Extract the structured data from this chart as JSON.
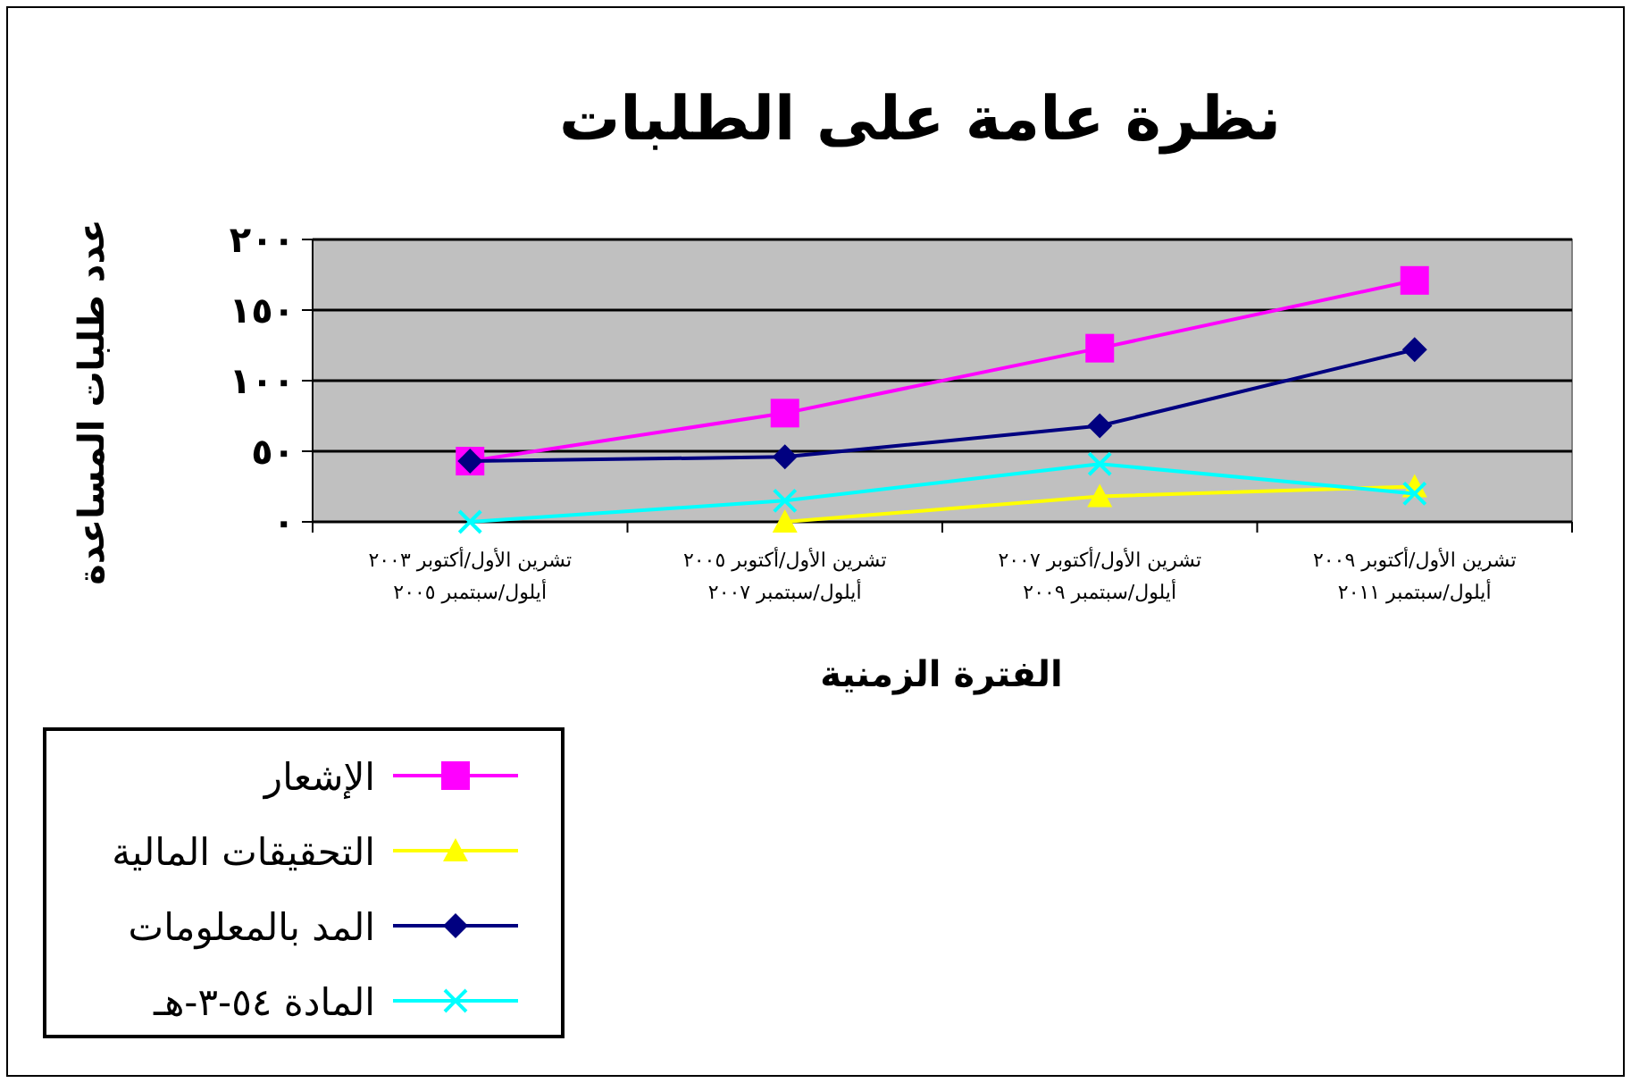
{
  "chart_data": {
    "type": "line",
    "title": "نظرة عامة على الطلبات",
    "xlabel": "الفترة الزمنية",
    "ylabel": "عدد طلبات المساعدة",
    "categories": [
      "تشرين الأول/أكتوبر ٢٠٠٣\nأيلول/سبتمبر ٢٠٠٥",
      "تشرين الأول/أكتوبر ٢٠٠٥\nأيلول/سبتمبر ٢٠٠٧",
      "تشرين الأول/أكتوبر ٢٠٠٧\nأيلول/سبتمبر ٢٠٠٩",
      "تشرين الأول/أكتوبر ٢٠٠٩\nأيلول/سبتمبر ٢٠١١"
    ],
    "series": [
      {
        "name": "الإشعار",
        "color": "#ff00ff",
        "marker": "square",
        "values": [
          43,
          77,
          123,
          171
        ]
      },
      {
        "name": "التحقيقات المالية",
        "color": "#ffff00",
        "marker": "triangle",
        "values": [
          null,
          0,
          18,
          25
        ]
      },
      {
        "name": "المد بالمعلومات",
        "color": "#000080",
        "marker": "diamond",
        "values": [
          43,
          46,
          68,
          122
        ]
      },
      {
        "name": "المادة ٥٤-٣-هـ",
        "color": "#00ffff",
        "marker": "cross",
        "values": [
          0,
          15,
          41,
          20
        ]
      }
    ],
    "ylim": [
      0,
      200
    ],
    "yticks": [
      {
        "value": 0,
        "label": "٠"
      },
      {
        "value": 50,
        "label": "٥٠"
      },
      {
        "value": 100,
        "label": "١٠٠"
      },
      {
        "value": 150,
        "label": "١٥٠"
      },
      {
        "value": 200,
        "label": "٢٠٠"
      }
    ],
    "grid": "y",
    "legend": "bottom left"
  }
}
